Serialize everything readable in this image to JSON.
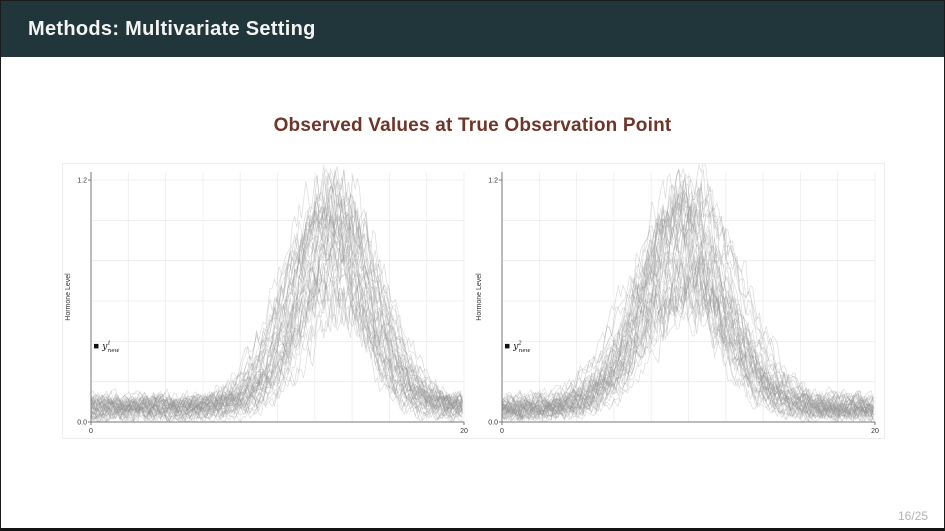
{
  "slide": {
    "title": "Methods: Multivariate Setting",
    "subtitle": "Observed Values at True Observation Point",
    "page_number": "16/25"
  },
  "colors": {
    "header_bg": "#20363a",
    "header_text": "#f4f4f4",
    "subtitle_text": "#6e3528",
    "grid": "#ececec",
    "axis": "#777777",
    "tick_text": "#333333",
    "curve": "rgba(145,145,145,0.32)",
    "legend_marker": "#111111"
  },
  "chart_data": [
    {
      "type": "line",
      "title": "",
      "xlabel": "",
      "ylabel": "Hormone Level",
      "xlim": [
        0,
        20
      ],
      "ylim": [
        0,
        1.24
      ],
      "x_ticks": [
        0,
        20
      ],
      "x_tick_labels": [
        "0",
        "20"
      ],
      "y_ticks": [
        0.0,
        1.2
      ],
      "y_tick_labels": [
        "0.0",
        "1.2"
      ],
      "grid": true,
      "grid_x_step": 2,
      "grid_y_step": 0.2,
      "legend": {
        "marker": "black-square",
        "symbol": "y",
        "sup": "1",
        "sub": "new",
        "at_x": 0.6,
        "at_y": 0.375
      },
      "ensemble": {
        "n_curves": 46,
        "seed": 7,
        "baseline": 0.07,
        "noise_sd": 0.035,
        "center": 13.0,
        "sigma": 1.9,
        "height_min": 0.5,
        "height_max": 1.12,
        "description": "~46 noisy hormone-level trajectories over t=0..20 forming a Gaussian-shaped peak near t=13, peak values up to ~1.2, baseline ~0.07"
      }
    },
    {
      "type": "line",
      "title": "",
      "xlabel": "",
      "ylabel": "Hormone Level",
      "xlim": [
        0,
        20
      ],
      "ylim": [
        0,
        1.24
      ],
      "x_ticks": [
        0,
        20
      ],
      "x_tick_labels": [
        "0",
        "20"
      ],
      "y_ticks": [
        0.0,
        1.2
      ],
      "y_tick_labels": [
        "0.0",
        "1.2"
      ],
      "grid": true,
      "grid_x_step": 2,
      "grid_y_step": 0.2,
      "legend": {
        "marker": "black-square",
        "symbol": "y",
        "sup": "2",
        "sub": "new",
        "at_x": 0.6,
        "at_y": 0.375
      },
      "ensemble": {
        "n_curves": 46,
        "seed": 23,
        "baseline": 0.07,
        "noise_sd": 0.035,
        "center": 9.8,
        "sigma": 2.2,
        "height_min": 0.5,
        "height_max": 1.12,
        "description": "~46 noisy hormone-level trajectories over t=0..20 forming a wider Gaussian-shaped peak near t=10, peak values up to ~1.2, baseline ~0.07"
      }
    }
  ]
}
